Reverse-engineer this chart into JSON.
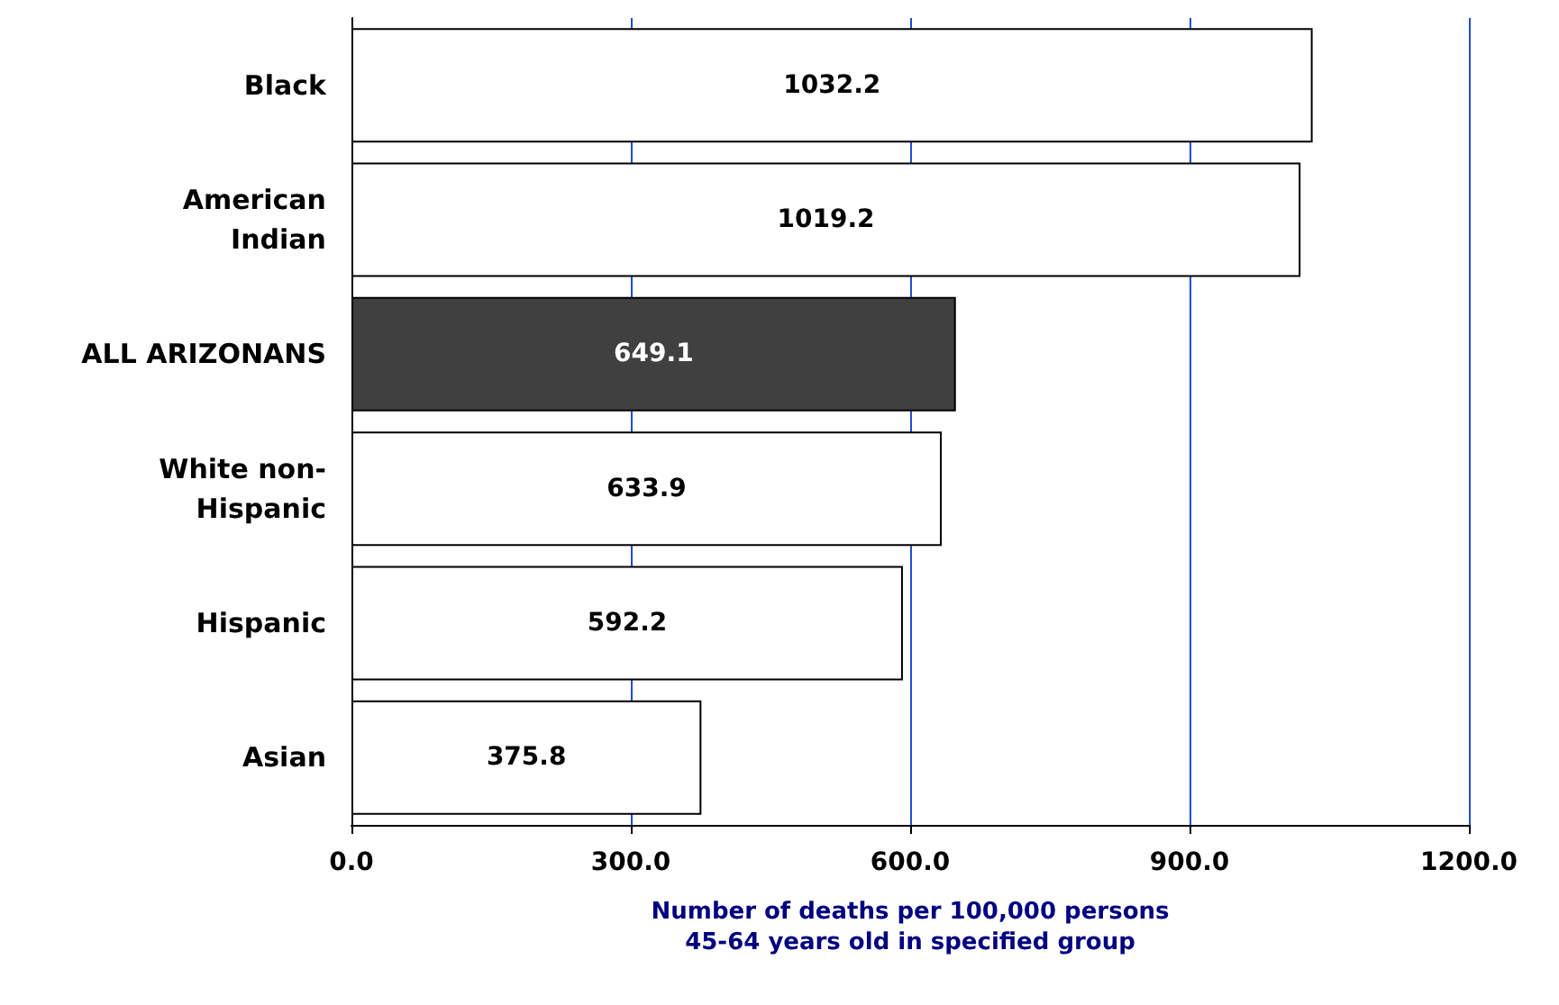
{
  "chart_data": {
    "type": "bar",
    "orientation": "horizontal",
    "categories": [
      "Black",
      "American\nIndian",
      "ALL ARIZONANS",
      "White non-\nHispanic",
      "Hispanic",
      "Asian"
    ],
    "values": [
      1032.2,
      1019.2,
      649.1,
      633.9,
      592.2,
      375.8
    ],
    "colors": [
      "#ffffff",
      "#ffffff",
      "#404040",
      "#ffffff",
      "#ffffff",
      "#ffffff"
    ],
    "xlim": [
      0,
      1200
    ],
    "xticks": [
      {
        "value": 0,
        "label": "0.0"
      },
      {
        "value": 300,
        "label": "300.0"
      },
      {
        "value": 600,
        "label": "600.0"
      },
      {
        "value": 900,
        "label": "900.0"
      },
      {
        "value": 1200,
        "label": "1200.0"
      }
    ],
    "xlabel": "Number of deaths per 100,000 persons\n45-64 years old in specified group",
    "data_labels": true,
    "grid": "x"
  }
}
